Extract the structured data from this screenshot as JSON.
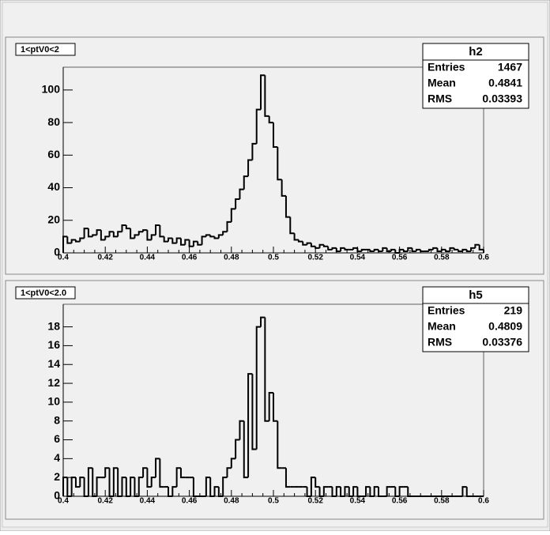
{
  "chart_data": [
    {
      "type": "histogram",
      "title": "1<ptV0<2",
      "color": "#000000",
      "stats": {
        "name": "h2",
        "labels": [
          "Entries",
          "Mean",
          "RMS"
        ],
        "values": [
          1467,
          0.4841,
          0.03393
        ]
      },
      "bins": [
        0.4,
        0.402,
        0.404,
        0.406,
        0.408,
        0.41,
        0.412,
        0.414,
        0.416,
        0.418,
        0.42,
        0.422,
        0.424,
        0.426,
        0.428,
        0.43,
        0.432,
        0.434,
        0.436,
        0.438,
        0.44,
        0.442,
        0.444,
        0.446,
        0.448,
        0.45,
        0.452,
        0.454,
        0.456,
        0.458,
        0.46,
        0.462,
        0.464,
        0.466,
        0.468,
        0.47,
        0.472,
        0.474,
        0.476,
        0.478,
        0.48,
        0.482,
        0.484,
        0.486,
        0.488,
        0.49,
        0.492,
        0.494,
        0.496,
        0.498,
        0.5,
        0.502,
        0.504,
        0.506,
        0.508,
        0.51,
        0.512,
        0.514,
        0.516,
        0.518,
        0.52,
        0.522,
        0.524,
        0.526,
        0.528,
        0.53,
        0.532,
        0.534,
        0.536,
        0.538,
        0.54,
        0.542,
        0.544,
        0.546,
        0.548,
        0.55,
        0.552,
        0.554,
        0.556,
        0.558,
        0.56,
        0.562,
        0.564,
        0.566,
        0.568,
        0.57,
        0.572,
        0.574,
        0.576,
        0.578,
        0.58,
        0.582,
        0.584,
        0.586,
        0.588,
        0.59,
        0.592,
        0.594,
        0.596,
        0.598,
        0.6
      ],
      "values": [
        10,
        6,
        8,
        7,
        9,
        15,
        10,
        11,
        14,
        8,
        10,
        13,
        10,
        13,
        17,
        15,
        9,
        11,
        13,
        14,
        8,
        11,
        17,
        10,
        7,
        9,
        6,
        9,
        5,
        8,
        4,
        7,
        5,
        10,
        11,
        10,
        9,
        11,
        13,
        19,
        27,
        33,
        39,
        47,
        57,
        67,
        88,
        109,
        84,
        80,
        65,
        45,
        35,
        22,
        12,
        8,
        7,
        5,
        6,
        4,
        3,
        5,
        4,
        2,
        3,
        1,
        3,
        2,
        2,
        3,
        1,
        2,
        2,
        1,
        2,
        1,
        3,
        1,
        2,
        0,
        2,
        1,
        3,
        1,
        2,
        1,
        1,
        2,
        3,
        1,
        2,
        1,
        3,
        2,
        1,
        2,
        1,
        3,
        5,
        2
      ],
      "xlim": [
        0.4,
        0.6
      ],
      "xticks": [
        0.4,
        0.42,
        0.44,
        0.46,
        0.48,
        0.5,
        0.52,
        0.54,
        0.56,
        0.58,
        0.6
      ],
      "ylim": [
        0,
        114
      ],
      "yticks": [
        0,
        20,
        40,
        60,
        80,
        100
      ]
    },
    {
      "type": "histogram",
      "title": "1<ptV0<2.0",
      "color": "#000000",
      "stats": {
        "name": "h5",
        "labels": [
          "Entries",
          "Mean",
          "RMS"
        ],
        "values": [
          219,
          0.4809,
          0.03376
        ]
      },
      "bins": [
        0.4,
        0.402,
        0.404,
        0.406,
        0.408,
        0.41,
        0.412,
        0.414,
        0.416,
        0.418,
        0.42,
        0.422,
        0.424,
        0.426,
        0.428,
        0.43,
        0.432,
        0.434,
        0.436,
        0.438,
        0.44,
        0.442,
        0.444,
        0.446,
        0.448,
        0.45,
        0.452,
        0.454,
        0.456,
        0.458,
        0.46,
        0.462,
        0.464,
        0.466,
        0.468,
        0.47,
        0.472,
        0.474,
        0.476,
        0.478,
        0.48,
        0.482,
        0.484,
        0.486,
        0.488,
        0.49,
        0.492,
        0.494,
        0.496,
        0.498,
        0.5,
        0.502,
        0.504,
        0.506,
        0.508,
        0.51,
        0.512,
        0.514,
        0.516,
        0.518,
        0.52,
        0.522,
        0.524,
        0.526,
        0.528,
        0.53,
        0.532,
        0.534,
        0.536,
        0.538,
        0.54,
        0.542,
        0.544,
        0.546,
        0.548,
        0.55,
        0.552,
        0.554,
        0.556,
        0.558,
        0.56,
        0.562,
        0.564,
        0.566,
        0.568,
        0.57,
        0.572,
        0.574,
        0.576,
        0.578,
        0.58,
        0.582,
        0.584,
        0.586,
        0.588,
        0.59,
        0.592,
        0.594,
        0.596,
        0.598,
        0.6
      ],
      "values": [
        2,
        0,
        2,
        1,
        2,
        0,
        3,
        0,
        2,
        2,
        3,
        0,
        3,
        0,
        2,
        0,
        2,
        0,
        2,
        3,
        1,
        2,
        4,
        1,
        1,
        0,
        1,
        3,
        2,
        2,
        2,
        0,
        0,
        0,
        2,
        0,
        1,
        0,
        2,
        3,
        4,
        6,
        8,
        2,
        13,
        5,
        18,
        19,
        8,
        11,
        8,
        3,
        3,
        1,
        1,
        1,
        1,
        1,
        0,
        2,
        1,
        0,
        1,
        1,
        0,
        1,
        0,
        1,
        0,
        1,
        0,
        0,
        1,
        0,
        1,
        0,
        0,
        1,
        1,
        0,
        1,
        1,
        0,
        0,
        0,
        0,
        0,
        0,
        0,
        0,
        0,
        0,
        0,
        0,
        0,
        1,
        0,
        0,
        0,
        0
      ],
      "xlim": [
        0.4,
        0.6
      ],
      "xticks": [
        0.4,
        0.42,
        0.44,
        0.46,
        0.48,
        0.5,
        0.52,
        0.54,
        0.56,
        0.58,
        0.6
      ],
      "ylim": [
        0,
        20.4
      ],
      "yticks": [
        0,
        2,
        4,
        6,
        8,
        10,
        12,
        14,
        16,
        18
      ]
    }
  ]
}
